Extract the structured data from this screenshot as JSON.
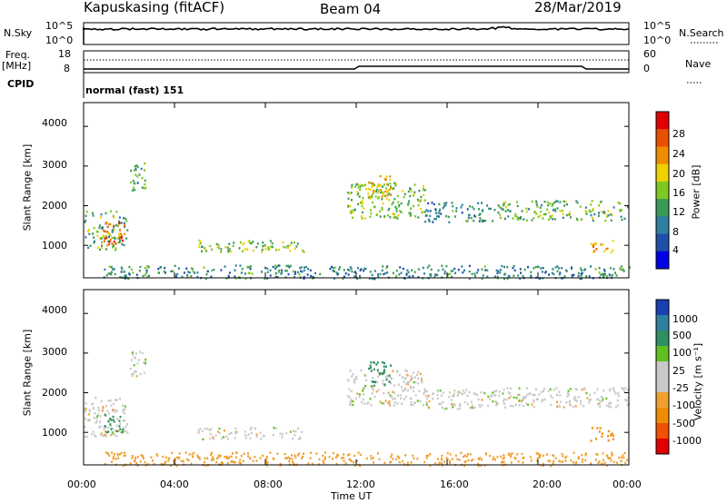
{
  "header": {
    "station": "Kapuskasing (fitACF)",
    "beam": "Beam 04",
    "date": "28/Mar/2019"
  },
  "top_panels": {
    "nsky_label": "N.Sky",
    "nsearch_label": "N.Search",
    "nsky_ticks": [
      "10^5",
      "10^0"
    ],
    "nsearch_ticks": [
      "10^5",
      "10^0"
    ],
    "freq_label": "Freq.",
    "freq_unit": "[MHz]",
    "freq_ticks": [
      "18",
      "8"
    ],
    "nave_label": "Nave",
    "nave_ticks": [
      "60",
      "0"
    ],
    "cpid_label": "CPID",
    "cpid_value": "normal (fast) 151"
  },
  "colors": {
    "power": [
      "#0000e6",
      "#1f4fa8",
      "#2e7fa0",
      "#3a9a5a",
      "#7ec820",
      "#f0d000",
      "#f08c00",
      "#e85000",
      "#e00000"
    ],
    "velocity": [
      "#e00000",
      "#f05000",
      "#f08c00",
      "#f0a030",
      "#c8c8c8",
      "#c8c8c8",
      "#60c020",
      "#2e8f60",
      "#2e7fa0",
      "#1a3fb0"
    ]
  },
  "chart_data": [
    {
      "type": "heatmap",
      "name": "power",
      "ylabel": "Slant Range [km]",
      "yticks": [
        "1000",
        "2000",
        "3000",
        "4000"
      ],
      "ytick_values": [
        1000,
        2000,
        3000,
        4000
      ],
      "ylim": [
        180,
        4600
      ],
      "xlim": [
        0,
        24
      ],
      "xticks": [],
      "colorbar_label": "Power [dB]",
      "colorbar_ticks": [
        "4",
        "8",
        "12",
        "16",
        "20",
        "24",
        "28"
      ],
      "colorbar_range": [
        0,
        32
      ],
      "regions": [
        {
          "t0": 0.0,
          "t1": 1.9,
          "r0": 900,
          "r1": 1900,
          "value": 14
        },
        {
          "t0": 0.8,
          "t1": 1.8,
          "r0": 1000,
          "r1": 1600,
          "value": 26
        },
        {
          "t0": 2.0,
          "t1": 2.7,
          "r0": 2400,
          "r1": 3100,
          "value": 12
        },
        {
          "t0": 5.0,
          "t1": 9.8,
          "r0": 850,
          "r1": 1150,
          "value": 16
        },
        {
          "t0": 0.8,
          "t1": 24.0,
          "r0": 180,
          "r1": 520,
          "value": 10
        },
        {
          "t0": 11.6,
          "t1": 15.0,
          "r0": 1700,
          "r1": 2600,
          "value": 16
        },
        {
          "t0": 12.5,
          "t1": 13.5,
          "r0": 2200,
          "r1": 2800,
          "value": 22
        },
        {
          "t0": 15.0,
          "t1": 18.0,
          "r0": 1600,
          "r1": 2100,
          "value": 10
        },
        {
          "t0": 18.0,
          "t1": 24.0,
          "r0": 1650,
          "r1": 2150,
          "value": 14
        },
        {
          "t0": 22.3,
          "t1": 23.3,
          "r0": 800,
          "r1": 1150,
          "value": 22
        }
      ]
    },
    {
      "type": "heatmap",
      "name": "velocity",
      "ylabel": "Slant Range [km]",
      "yticks": [
        "1000",
        "2000",
        "3000",
        "4000"
      ],
      "ytick_values": [
        1000,
        2000,
        3000,
        4000
      ],
      "ylim": [
        180,
        4600
      ],
      "xlim": [
        0,
        24
      ],
      "xticks": [
        "00:00",
        "04:00",
        "08:00",
        "12:00",
        "16:00",
        "20:00",
        "00:00"
      ],
      "xtick_values": [
        0,
        4,
        8,
        12,
        16,
        20,
        24
      ],
      "xlabel": "Time UT",
      "colorbar_label": "Velocity [m s⁻¹]",
      "colorbar_ticks": [
        "1000",
        "500",
        "100",
        "25",
        "-25",
        "-100",
        "-500",
        "-1000"
      ],
      "regions": [
        {
          "t0": 0.0,
          "t1": 1.9,
          "r0": 900,
          "r1": 1900,
          "value": 0
        },
        {
          "t0": 0.9,
          "t1": 1.7,
          "r0": 1000,
          "r1": 1500,
          "value": 150
        },
        {
          "t0": 2.0,
          "t1": 2.7,
          "r0": 2400,
          "r1": 3100,
          "value": 0
        },
        {
          "t0": 5.0,
          "t1": 9.8,
          "r0": 850,
          "r1": 1150,
          "value": 0
        },
        {
          "t0": 0.8,
          "t1": 24.0,
          "r0": 180,
          "r1": 520,
          "value": -60
        },
        {
          "t0": 11.6,
          "t1": 15.0,
          "r0": 1700,
          "r1": 2600,
          "value": 0
        },
        {
          "t0": 12.5,
          "t1": 13.5,
          "r0": 2200,
          "r1": 2800,
          "value": 200
        },
        {
          "t0": 15.0,
          "t1": 18.0,
          "r0": 1600,
          "r1": 2100,
          "value": 0
        },
        {
          "t0": 18.0,
          "t1": 24.0,
          "r0": 1650,
          "r1": 2150,
          "value": 0
        },
        {
          "t0": 22.3,
          "t1": 23.3,
          "r0": 800,
          "r1": 1150,
          "value": -300
        }
      ]
    }
  ]
}
